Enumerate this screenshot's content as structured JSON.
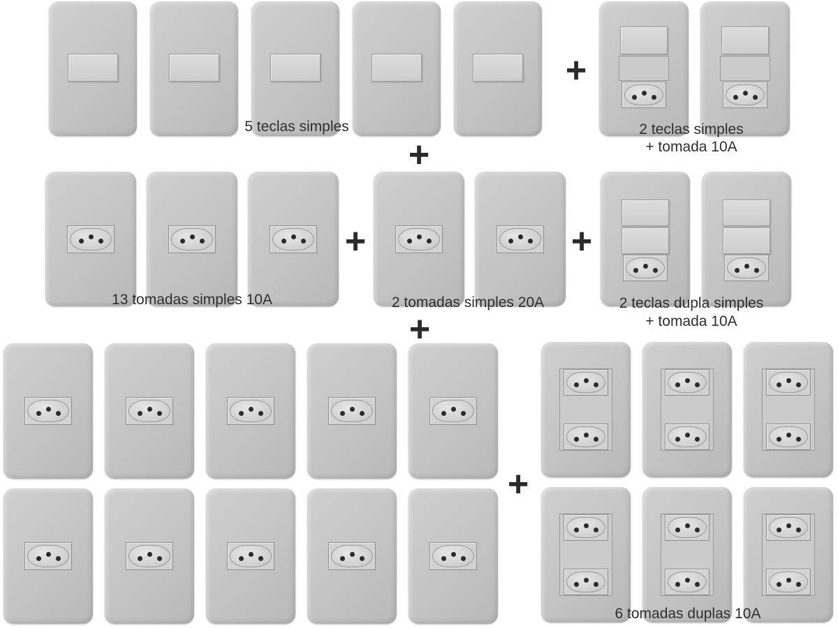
{
  "captions": {
    "teclas_simples": "5 teclas simples",
    "teclas_tomada_line1": "2 teclas simples",
    "teclas_tomada_line2": "+ tomada 10A",
    "tomadas_10a": "13 tomadas simples 10A",
    "tomadas_20a": "2 tomadas simples 20A",
    "dupla_line1": "2 teclas dupla simples",
    "dupla_line2": "+ tomada 10A",
    "duplas_10a": "6 tomadas duplas 10A"
  },
  "plus_sign": "+",
  "colors": {
    "plate": "#c6c6c6",
    "pin": "#2c2c2c",
    "text": "#2e2e2e"
  }
}
